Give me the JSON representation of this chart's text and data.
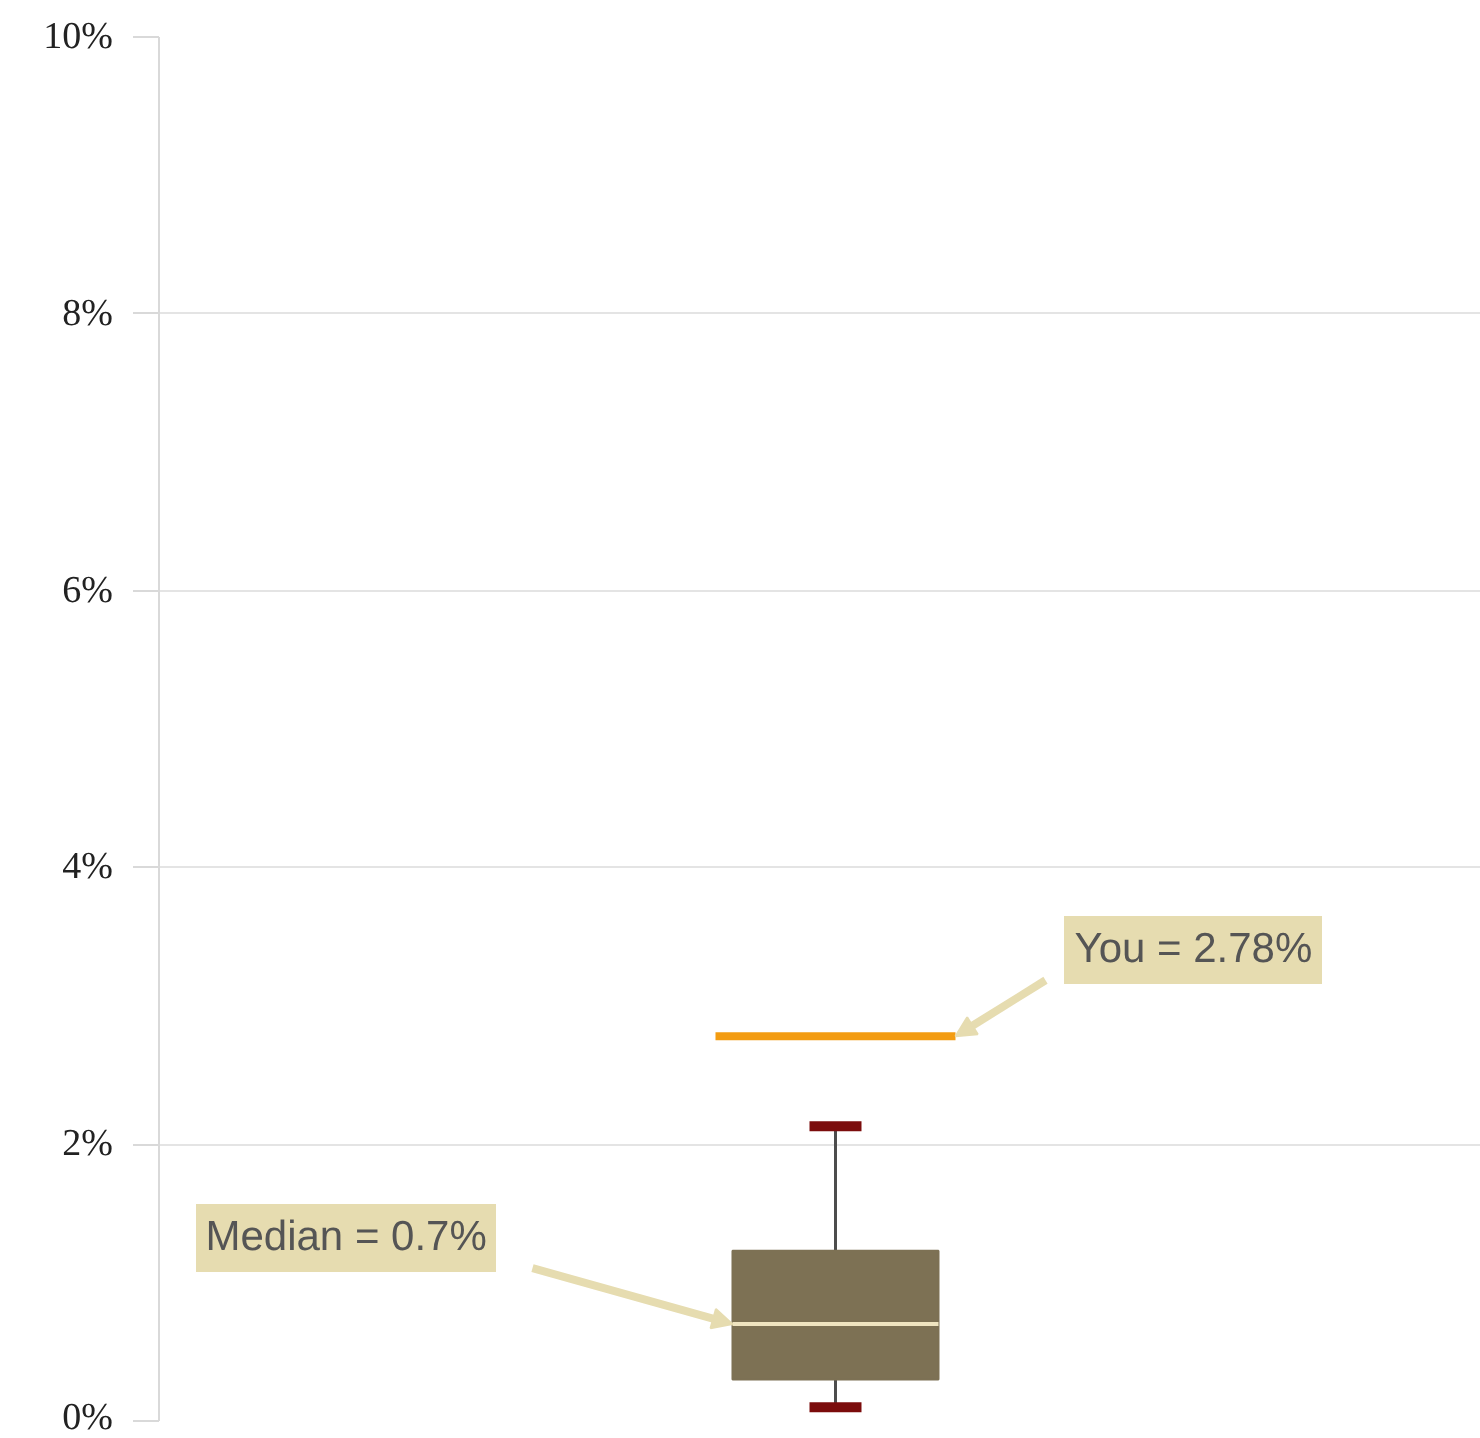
{
  "chart_data": {
    "type": "box",
    "categories": [
      null
    ],
    "boxes": [
      {
        "low": 0.1,
        "q1": 0.3,
        "median": 0.7,
        "q3": 1.23,
        "high": 2.13
      }
    ],
    "colors": [
      "#7d7154"
    ],
    "ylim": [
      0,
      10
    ],
    "yticks": [
      {
        "value": 0,
        "label": "0%"
      },
      {
        "value": 2,
        "label": "2%"
      },
      {
        "value": 4,
        "label": "4%"
      },
      {
        "value": 6,
        "label": "6%"
      },
      {
        "value": 8,
        "label": "8%"
      },
      {
        "value": 10,
        "label": "10%"
      }
    ],
    "grid": "y",
    "tick_labels": "y",
    "ref_lines": [
      {
        "axis": "y",
        "value": 2.78,
        "label": "You = 2.78%",
        "color": "#f39c12"
      }
    ],
    "annotations": [
      "Median = 0.7%"
    ]
  }
}
